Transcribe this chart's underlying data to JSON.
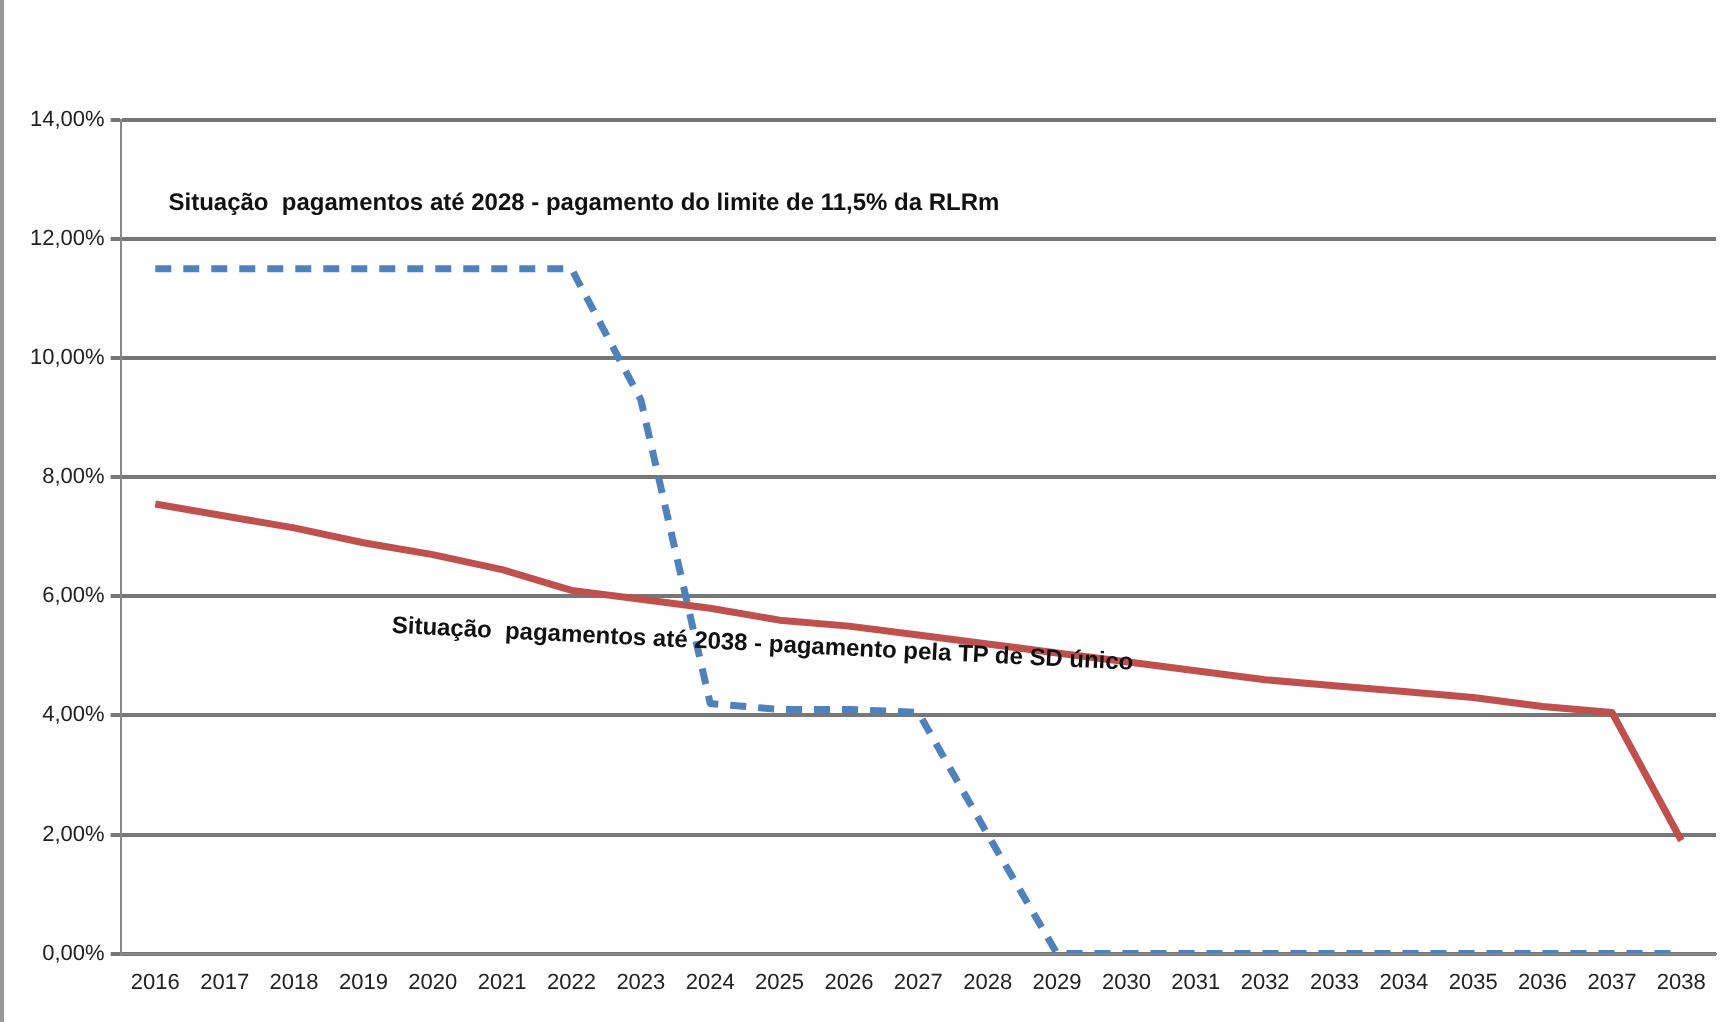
{
  "chart_data": {
    "type": "line",
    "categories": [
      "2016",
      "2017",
      "2018",
      "2019",
      "2020",
      "2021",
      "2022",
      "2023",
      "2024",
      "2025",
      "2026",
      "2027",
      "2028",
      "2029",
      "2030",
      "2031",
      "2032",
      "2033",
      "2034",
      "2035",
      "2036",
      "2037",
      "2038"
    ],
    "series": [
      {
        "color": "#4f81bd",
        "line_style": "dashed",
        "values": [
          11.5,
          11.5,
          11.5,
          11.5,
          11.5,
          11.5,
          11.5,
          9.3,
          4.2,
          4.1,
          4.1,
          4.05,
          2.0,
          0,
          0,
          0,
          0,
          0,
          0,
          0,
          0,
          0,
          0
        ]
      },
      {
        "color": "#c0504d",
        "line_style": "solid",
        "values": [
          7.55,
          7.35,
          7.15,
          6.9,
          6.7,
          6.45,
          6.1,
          5.95,
          5.8,
          5.6,
          5.5,
          5.35,
          5.2,
          5.05,
          4.9,
          4.75,
          4.6,
          4.5,
          4.4,
          4.3,
          4.15,
          4.05,
          1.9
        ]
      }
    ],
    "ylim": [
      0,
      14
    ],
    "yticks": [
      {
        "value": 0,
        "label": "0,00%"
      },
      {
        "value": 2,
        "label": "2,00%"
      },
      {
        "value": 4,
        "label": "4,00%"
      },
      {
        "value": 6,
        "label": "6,00%"
      },
      {
        "value": 8,
        "label": "8,00%"
      },
      {
        "value": 10,
        "label": "10,00%"
      },
      {
        "value": 12,
        "label": "12,00%"
      },
      {
        "value": 14,
        "label": "14,00%"
      }
    ],
    "grid": "y",
    "marker": "none",
    "legend": false,
    "annotations": [
      "Situação  pagamentos até 2028 - pagamento do limite de 11,5% da RLRm",
      "Situação  pagamentos até 2038 - pagamento pela TP de SD único"
    ]
  }
}
